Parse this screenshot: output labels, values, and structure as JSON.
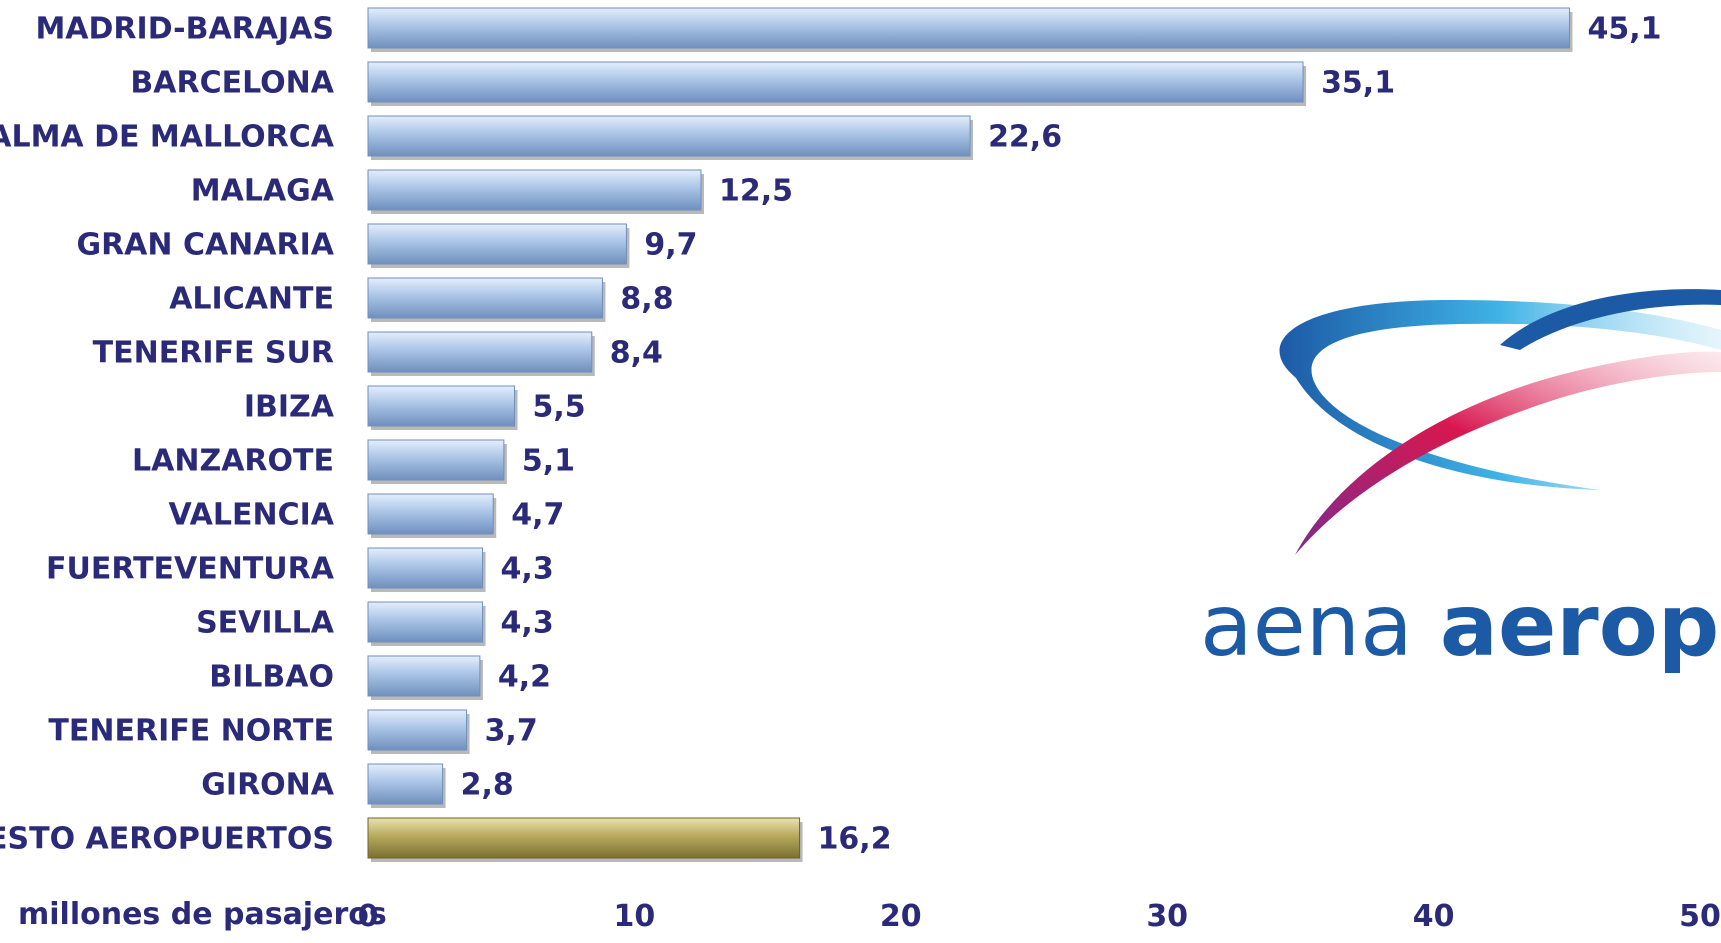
{
  "chart_data": {
    "type": "bar",
    "orientation": "horizontal",
    "categories": [
      "MADRID-BARAJAS",
      "BARCELONA",
      "PALMA DE MALLORCA",
      "MALAGA",
      "GRAN CANARIA",
      "ALICANTE",
      "TENERIFE SUR",
      "IBIZA",
      "LANZAROTE",
      "VALENCIA",
      "FUERTEVENTURA",
      "SEVILLA",
      "BILBAO",
      "TENERIFE NORTE",
      "GIRONA",
      "RESTO AEROPUERTOS"
    ],
    "values": [
      45.1,
      35.1,
      22.6,
      12.5,
      9.7,
      8.8,
      8.4,
      5.5,
      5.1,
      4.7,
      4.3,
      4.3,
      4.2,
      3.7,
      2.8,
      16.2
    ],
    "value_labels": [
      "45,1",
      "35,1",
      "22,6",
      "12,5",
      "9,7",
      "8,8",
      "8,4",
      "5,5",
      "5,1",
      "4,7",
      "4,3",
      "4,3",
      "4,2",
      "3,7",
      "2,8",
      "16,2"
    ],
    "xlabel": "millones de pasajeros",
    "ylabel": "",
    "xlim": [
      0,
      50
    ],
    "xticks": [
      "0",
      "10",
      "20",
      "30",
      "40",
      "50"
    ],
    "grid": false,
    "colors": {
      "bar": "#a9c4e6",
      "bar_highlight": "#a69a4e",
      "text": "#2a2a78",
      "highlight_value_text": "#8a7a2a"
    }
  },
  "logo": {
    "text_light": "aena",
    "text_bold": "aeropu",
    "colors": {
      "blue": "#1c5aa6",
      "cyan": "#3fb3e6",
      "red": "#d8174f",
      "purple": "#7b2c8f"
    }
  }
}
